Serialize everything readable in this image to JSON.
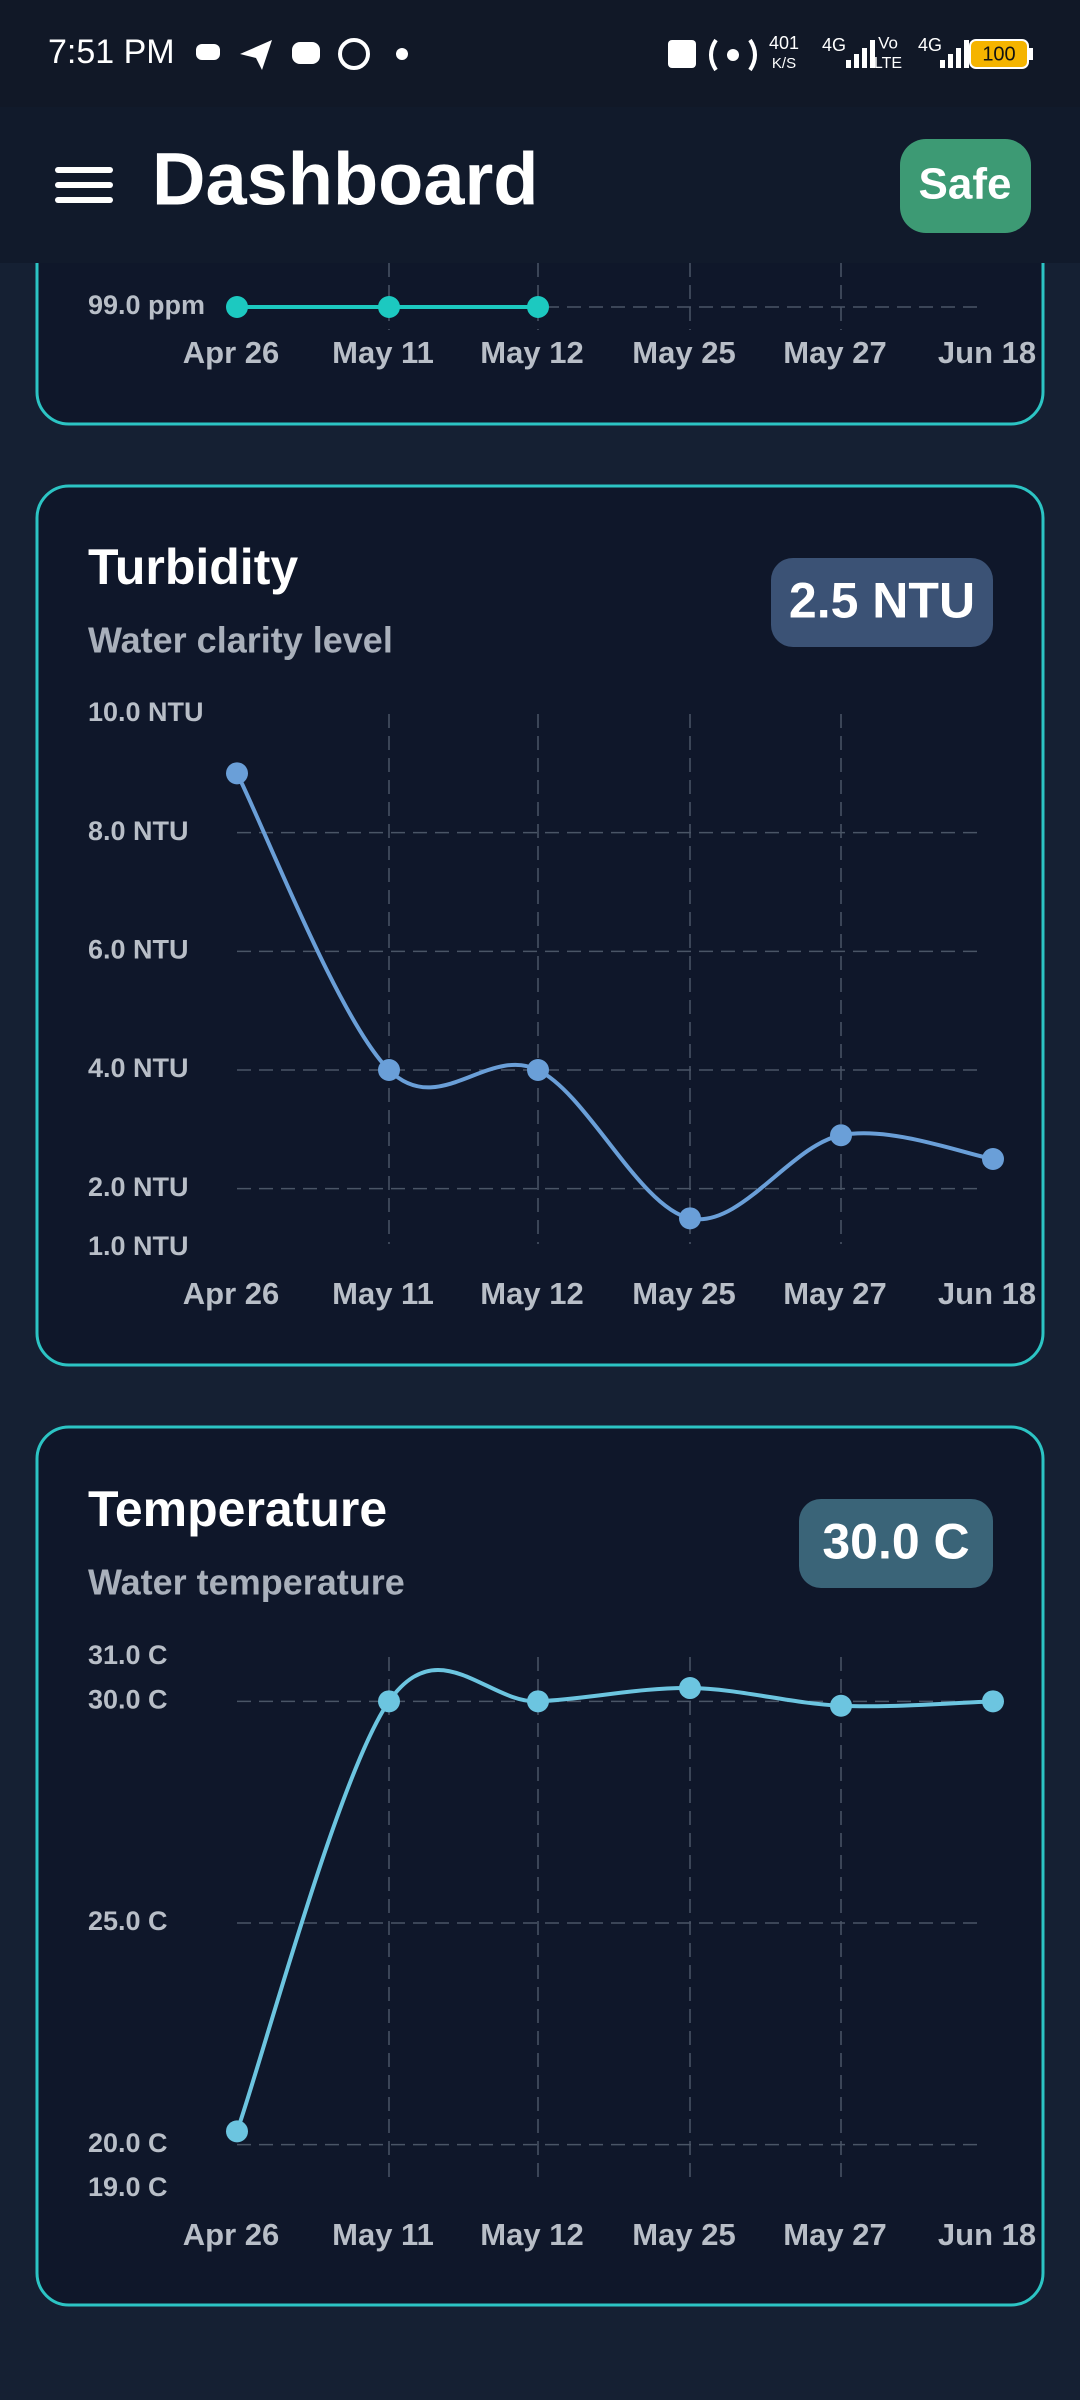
{
  "status_bar": {
    "time": "7:51 PM",
    "indicators": [
      "401",
      "K/S",
      "4G",
      "Vo",
      "LTE",
      "4G"
    ],
    "battery": "100"
  },
  "header": {
    "title": "Dashboard",
    "status": "Safe"
  },
  "chart_data": [
    {
      "type": "line",
      "categories": [
        "Apr 26",
        "May 11",
        "May 12",
        "May 25",
        "May 27",
        "Jun 18"
      ],
      "series": [
        {
          "color": "#1cc9c0",
          "values": [
            99,
            99,
            99,
            null,
            null,
            null
          ]
        }
      ],
      "ylim": [
        98.5,
        100.5
      ],
      "yticks": [
        {
          "value": 99,
          "label": "99.0 ppm"
        }
      ],
      "grid": true
    },
    {
      "type": "line",
      "title": "Turbidity",
      "subtitle": "Water clarity level",
      "badge": "2.5 NTU",
      "badge_color": "#3b5275",
      "categories": [
        "Apr 26",
        "May 11",
        "May 12",
        "May 25",
        "May 27",
        "Jun 18"
      ],
      "series": [
        {
          "color": "#6a9fd8",
          "values": [
            9.0,
            4.0,
            4.0,
            1.5,
            2.9,
            2.5
          ]
        }
      ],
      "ylim": [
        1,
        10
      ],
      "yticks": [
        {
          "value": 10,
          "label": "10.0 NTU"
        },
        {
          "value": 8,
          "label": "8.0 NTU"
        },
        {
          "value": 6,
          "label": "6.0 NTU"
        },
        {
          "value": 4,
          "label": "4.0 NTU"
        },
        {
          "value": 2,
          "label": "2.0 NTU"
        },
        {
          "value": 1,
          "label": "1.0 NTU"
        }
      ],
      "grid": true
    },
    {
      "type": "line",
      "title": "Temperature",
      "subtitle": "Water temperature",
      "badge": "30.0 C",
      "badge_color": "#3a6478",
      "categories": [
        "Apr 26",
        "May 11",
        "May 12",
        "May 25",
        "May 27",
        "Jun 18"
      ],
      "series": [
        {
          "color": "#6cc5e0",
          "values": [
            20.3,
            30.0,
            30.0,
            30.3,
            29.9,
            30.0
          ]
        }
      ],
      "ylim": [
        19,
        31
      ],
      "yticks": [
        {
          "value": 31,
          "label": "31.0 C"
        },
        {
          "value": 30,
          "label": "30.0 C"
        },
        {
          "value": 25,
          "label": "25.0 C"
        },
        {
          "value": 20,
          "label": "20.0 C"
        },
        {
          "value": 19,
          "label": "19.0 C"
        }
      ],
      "grid": true
    }
  ]
}
